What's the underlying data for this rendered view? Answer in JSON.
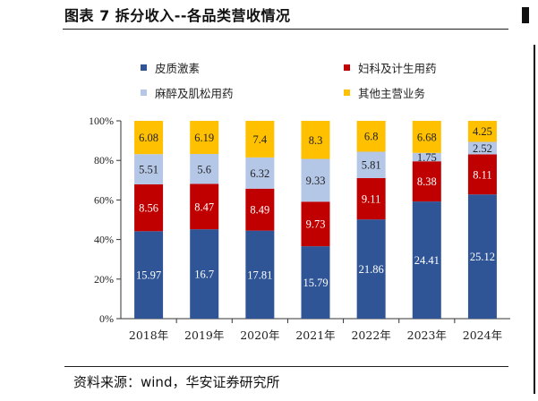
{
  "figure": {
    "title": "图表 7  拆分收入--各品类营收情况",
    "source": "资料来源：wind，华安证券研究所"
  },
  "chart_data": {
    "type": "bar",
    "stacked": true,
    "percent_axis": true,
    "categories": [
      "2018年",
      "2019年",
      "2020年",
      "2021年",
      "2022年",
      "2023年",
      "2024年"
    ],
    "ylim": [
      0,
      100
    ],
    "yticks": [
      "0%",
      "20%",
      "40%",
      "60%",
      "80%",
      "100%"
    ],
    "grid": false,
    "legend_position": "top",
    "series": [
      {
        "name": "皮质激素",
        "color": "#2f5597",
        "label_color": "#ffffff",
        "values": [
          15.97,
          16.7,
          17.81,
          15.79,
          21.86,
          24.41,
          25.12
        ]
      },
      {
        "name": "妇科及计生用药",
        "color": "#c00000",
        "label_color": "#ffffff",
        "values": [
          8.56,
          8.47,
          8.49,
          9.73,
          9.11,
          8.38,
          8.11
        ]
      },
      {
        "name": "麻醉及肌松用药",
        "color": "#b4c7e7",
        "label_color": "#222222",
        "values": [
          5.51,
          5.6,
          6.32,
          9.33,
          5.81,
          1.75,
          2.52
        ]
      },
      {
        "name": "其他主营业务",
        "color": "#ffc000",
        "label_color": "#222222",
        "values": [
          6.08,
          6.19,
          7.4,
          8.3,
          6.8,
          6.68,
          4.25
        ]
      }
    ]
  }
}
